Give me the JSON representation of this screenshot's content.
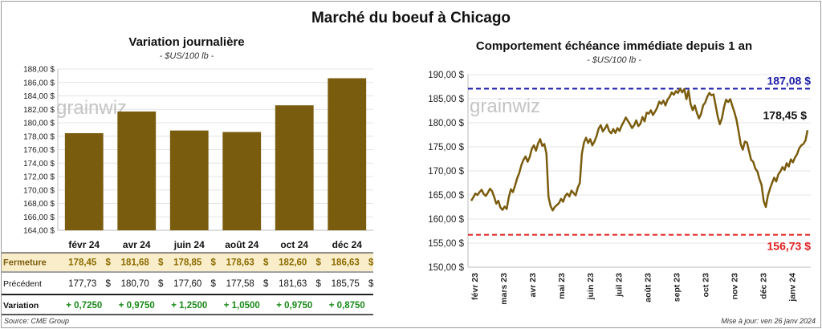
{
  "title": "Marché du boeuf à Chicago",
  "source": "Source: CME Group",
  "updated": "Mise à jour: ven 26 janv 2024",
  "watermark": "grainwiz",
  "colors": {
    "bar": "#7a5c0e",
    "line": "#7a5c0e",
    "upper": "#1c1ca8",
    "lower": "#e01e1e",
    "positive": "#1a8a1a",
    "row_highlight": "#faeeca"
  },
  "chart_data": [
    {
      "type": "bar",
      "title": "Variation journalière",
      "subtitle": "- $US/100 lb -",
      "categories": [
        "févr 24",
        "avr 24",
        "juin 24",
        "août 24",
        "oct 24",
        "déc 24"
      ],
      "values": [
        178.45,
        181.68,
        178.85,
        178.63,
        182.6,
        186.63
      ],
      "ylim": [
        164,
        188
      ],
      "yticks": [
        "164,00 $",
        "166,00 $",
        "168,00 $",
        "170,00 $",
        "172,00 $",
        "174,00 $",
        "176,00 $",
        "178,00 $",
        "180,00 $",
        "182,00 $",
        "184,00 $",
        "186,00 $",
        "188,00 $"
      ],
      "grid": true,
      "table": {
        "rows": [
          {
            "label": "Fermeture",
            "values": [
              "178,45",
              "181,68",
              "178,85",
              "178,63",
              "182,60",
              "186,63"
            ],
            "unit": "$"
          },
          {
            "label": "Précédent",
            "values": [
              "177,73",
              "180,70",
              "177,60",
              "177,58",
              "181,63",
              "185,75"
            ],
            "unit": "$"
          },
          {
            "label": "Variation",
            "values": [
              "+ 0,7250",
              "+ 0,9750",
              "+ 1,2500",
              "+ 1,0500",
              "+ 0,9750",
              "+ 0,8750"
            ],
            "unit": ""
          }
        ]
      }
    },
    {
      "type": "line",
      "title": "Comportement échéance immédiate depuis 1 an",
      "subtitle": "- $US/100 lb -",
      "ylim": [
        150,
        190
      ],
      "yticks": [
        "150,00 $",
        "155,00 $",
        "160,00 $",
        "165,00 $",
        "170,00 $",
        "175,00 $",
        "180,00 $",
        "185,00 $",
        "190,00 $"
      ],
      "xticks": [
        "févr 23",
        "mars 23",
        "avr 23",
        "mai 23",
        "juin 23",
        "juil 23",
        "août 23",
        "sept 23",
        "oct 23",
        "nov 23",
        "déc 23",
        "janv 24"
      ],
      "grid": true,
      "reference_lines": [
        {
          "value": 187.08,
          "label": "187,08 $",
          "color": "#1c1ca8"
        },
        {
          "value": 156.73,
          "label": "156,73 $",
          "color": "#e01e1e"
        }
      ],
      "last_label": "178,45 $",
      "series": [
        {
          "values": [
            163.8,
            164.5,
            165.3,
            165.0,
            165.6,
            166.1,
            165.2,
            164.8,
            165.5,
            166.3,
            165.8,
            164.6,
            163.2,
            163.8,
            162.4,
            161.9,
            162.6,
            162.1,
            164.5,
            166.2,
            165.6,
            167.0,
            168.5,
            169.6,
            171.2,
            172.3,
            173.0,
            171.9,
            172.9,
            174.6,
            175.3,
            174.2,
            175.7,
            176.6,
            175.2,
            175.6,
            173.6,
            164.6,
            162.7,
            161.8,
            162.5,
            162.9,
            163.3,
            164.2,
            163.6,
            164.8,
            165.3,
            164.7,
            165.9,
            165.4,
            164.9,
            166.5,
            167.5,
            173.6,
            175.9,
            176.9,
            175.8,
            176.6,
            175.3,
            176.1,
            177.2,
            178.8,
            179.5,
            178.2,
            178.8,
            179.6,
            178.3,
            177.8,
            178.7,
            177.9,
            178.9,
            178.3,
            179.4,
            180.2,
            181.1,
            180.4,
            179.7,
            178.9,
            179.5,
            180.5,
            179.3,
            179.8,
            181.2,
            180.3,
            182.1,
            181.9,
            182.6,
            181.6,
            182.3,
            183.1,
            184.4,
            183.9,
            184.6,
            183.6,
            184.8,
            185.4,
            186.3,
            185.8,
            186.6,
            186.2,
            187.1,
            186.3,
            187.0,
            184.9,
            186.7,
            183.9,
            182.6,
            183.6,
            182.1,
            180.9,
            181.8,
            183.6,
            184.2,
            185.4,
            186.2,
            185.7,
            185.9,
            183.6,
            181.3,
            179.7,
            180.9,
            183.2,
            184.8,
            184.3,
            184.9,
            183.5,
            182.2,
            180.6,
            178.2,
            175.6,
            174.4,
            176.1,
            175.9,
            174.1,
            172.3,
            171.9,
            170.5,
            169.9,
            168.3,
            167.1,
            163.8,
            162.5,
            164.9,
            166.3,
            167.5,
            168.6,
            167.8,
            169.3,
            169.9,
            170.8,
            170.2,
            171.6,
            170.9,
            172.4,
            171.8,
            172.8,
            173.5,
            174.7,
            175.3,
            175.6,
            176.3,
            178.45
          ]
        }
      ]
    }
  ]
}
